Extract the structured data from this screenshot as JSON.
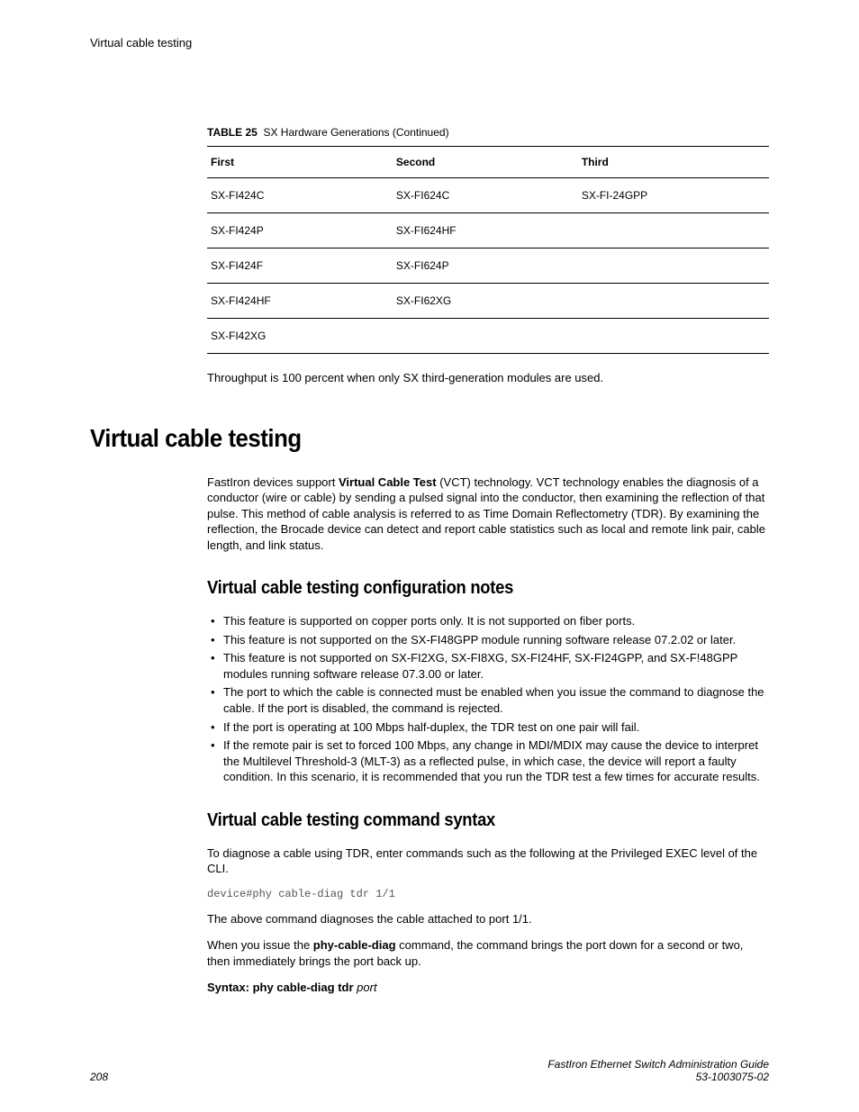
{
  "header": {
    "left": "Virtual cable testing"
  },
  "table": {
    "caption_label": "TABLE 25",
    "caption_text": "SX Hardware Generations (Continued)",
    "columns": [
      "First",
      "Second",
      "Third"
    ],
    "rows": [
      [
        "SX-FI424C",
        "SX-FI624C",
        "SX-FI-24GPP"
      ],
      [
        "SX-FI424P",
        "SX-FI624HF",
        ""
      ],
      [
        "SX-FI424F",
        "SX-FI624P",
        ""
      ],
      [
        "SX-FI424HF",
        "SX-FI62XG",
        ""
      ],
      [
        "SX-FI42XG",
        "",
        ""
      ]
    ]
  },
  "after_table": "Throughput is 100 percent when only SX third-generation modules are used.",
  "h1": "Virtual cable testing",
  "intro": {
    "pre": "FastIron devices support ",
    "bold": "Virtual Cable Test",
    "post": " (VCT) technology. VCT technology enables the diagnosis of a conductor (wire or cable) by sending a pulsed signal into the conductor, then examining the reflection of that pulse. This method of cable analysis is referred to as Time Domain Reflectometry (TDR). By examining the reflection, the Brocade device can detect and report cable statistics such as local and remote link pair, cable length, and link status."
  },
  "h2a": "Virtual cable testing configuration notes",
  "bullets": [
    "This feature is supported on copper ports only. It is not supported on fiber ports.",
    "This feature is not supported on the SX-FI48GPP module running software release 07.2.02 or later.",
    "This feature is not supported on SX-FI2XG, SX-FI8XG, SX-FI24HF, SX-FI24GPP, and SX-F!48GPP modules running software release 07.3.00 or later.",
    "The port to which the cable is connected must be enabled when you issue the command to diagnose the cable. If the port is disabled, the command is rejected.",
    "If the port is operating at 100 Mbps half-duplex, the TDR test on one pair will fail.",
    "If the remote pair is set to forced 100 Mbps, any change in MDI/MDIX may cause the device to interpret the Multilevel Threshold-3 (MLT-3) as a reflected pulse, in which case, the device will report a faulty condition. In this scenario, it is recommended that you run the TDR test a few times for accurate results."
  ],
  "h2b": "Virtual cable testing command syntax",
  "syntax_intro": "To diagnose a cable using TDR, enter commands such as the following at the Privileged EXEC level of the CLI.",
  "code": "device#phy cable-diag tdr 1/1",
  "after_code": "The above command diagnoses the cable attached to port 1/1.",
  "phy_para": {
    "pre": "When you issue the ",
    "bold": "phy-cable-diag",
    "post": " command, the command brings the port down for a second or two, then immediately brings the port back up."
  },
  "syntax_line": {
    "bold": "Syntax: phy cable-diag tdr ",
    "italic": "port"
  },
  "footer": {
    "page": "208",
    "title": "FastIron Ethernet Switch Administration Guide",
    "docnum": "53-1003075-02"
  }
}
